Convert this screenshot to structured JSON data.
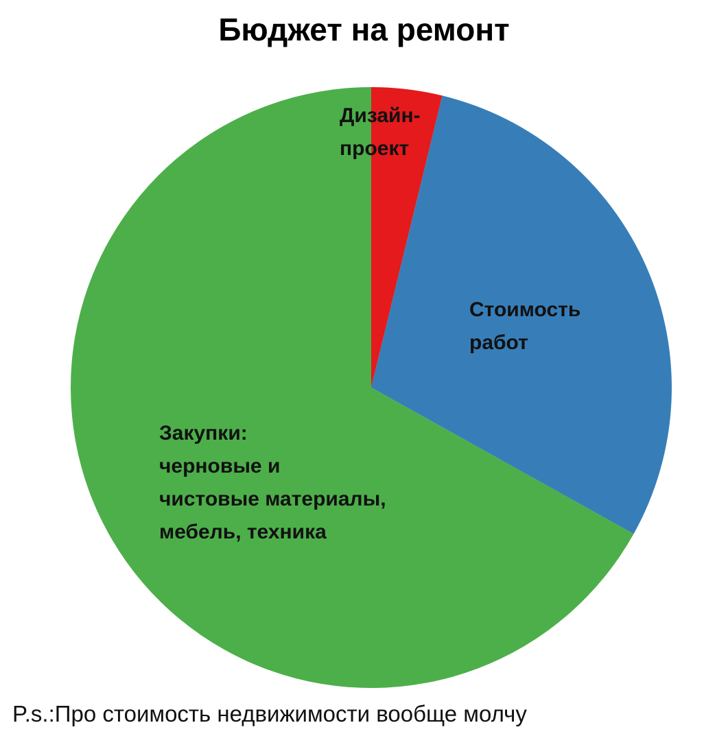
{
  "title": "Бюджет на ремонт",
  "footnote": "P.s.:Про стоимость недвижимости вообще молчу",
  "chart_data": {
    "type": "pie",
    "title": "Бюджет на ремонт",
    "start_angle_deg": 0,
    "direction": "clockwise",
    "slices": [
      {
        "label_lines": [
          "Дизайн-",
          "проект"
        ],
        "value": 3.8,
        "color": "#E41A1C"
      },
      {
        "label_lines": [
          "Стоимость",
          "работ"
        ],
        "value": 29.3,
        "color": "#377EB8"
      },
      {
        "label_lines": [
          "Закупки:",
          "черновые и",
          "чистовые материалы,",
          "мебель, техника"
        ],
        "value": 66.9,
        "color": "#4DAF4A"
      }
    ],
    "legend": "none"
  }
}
